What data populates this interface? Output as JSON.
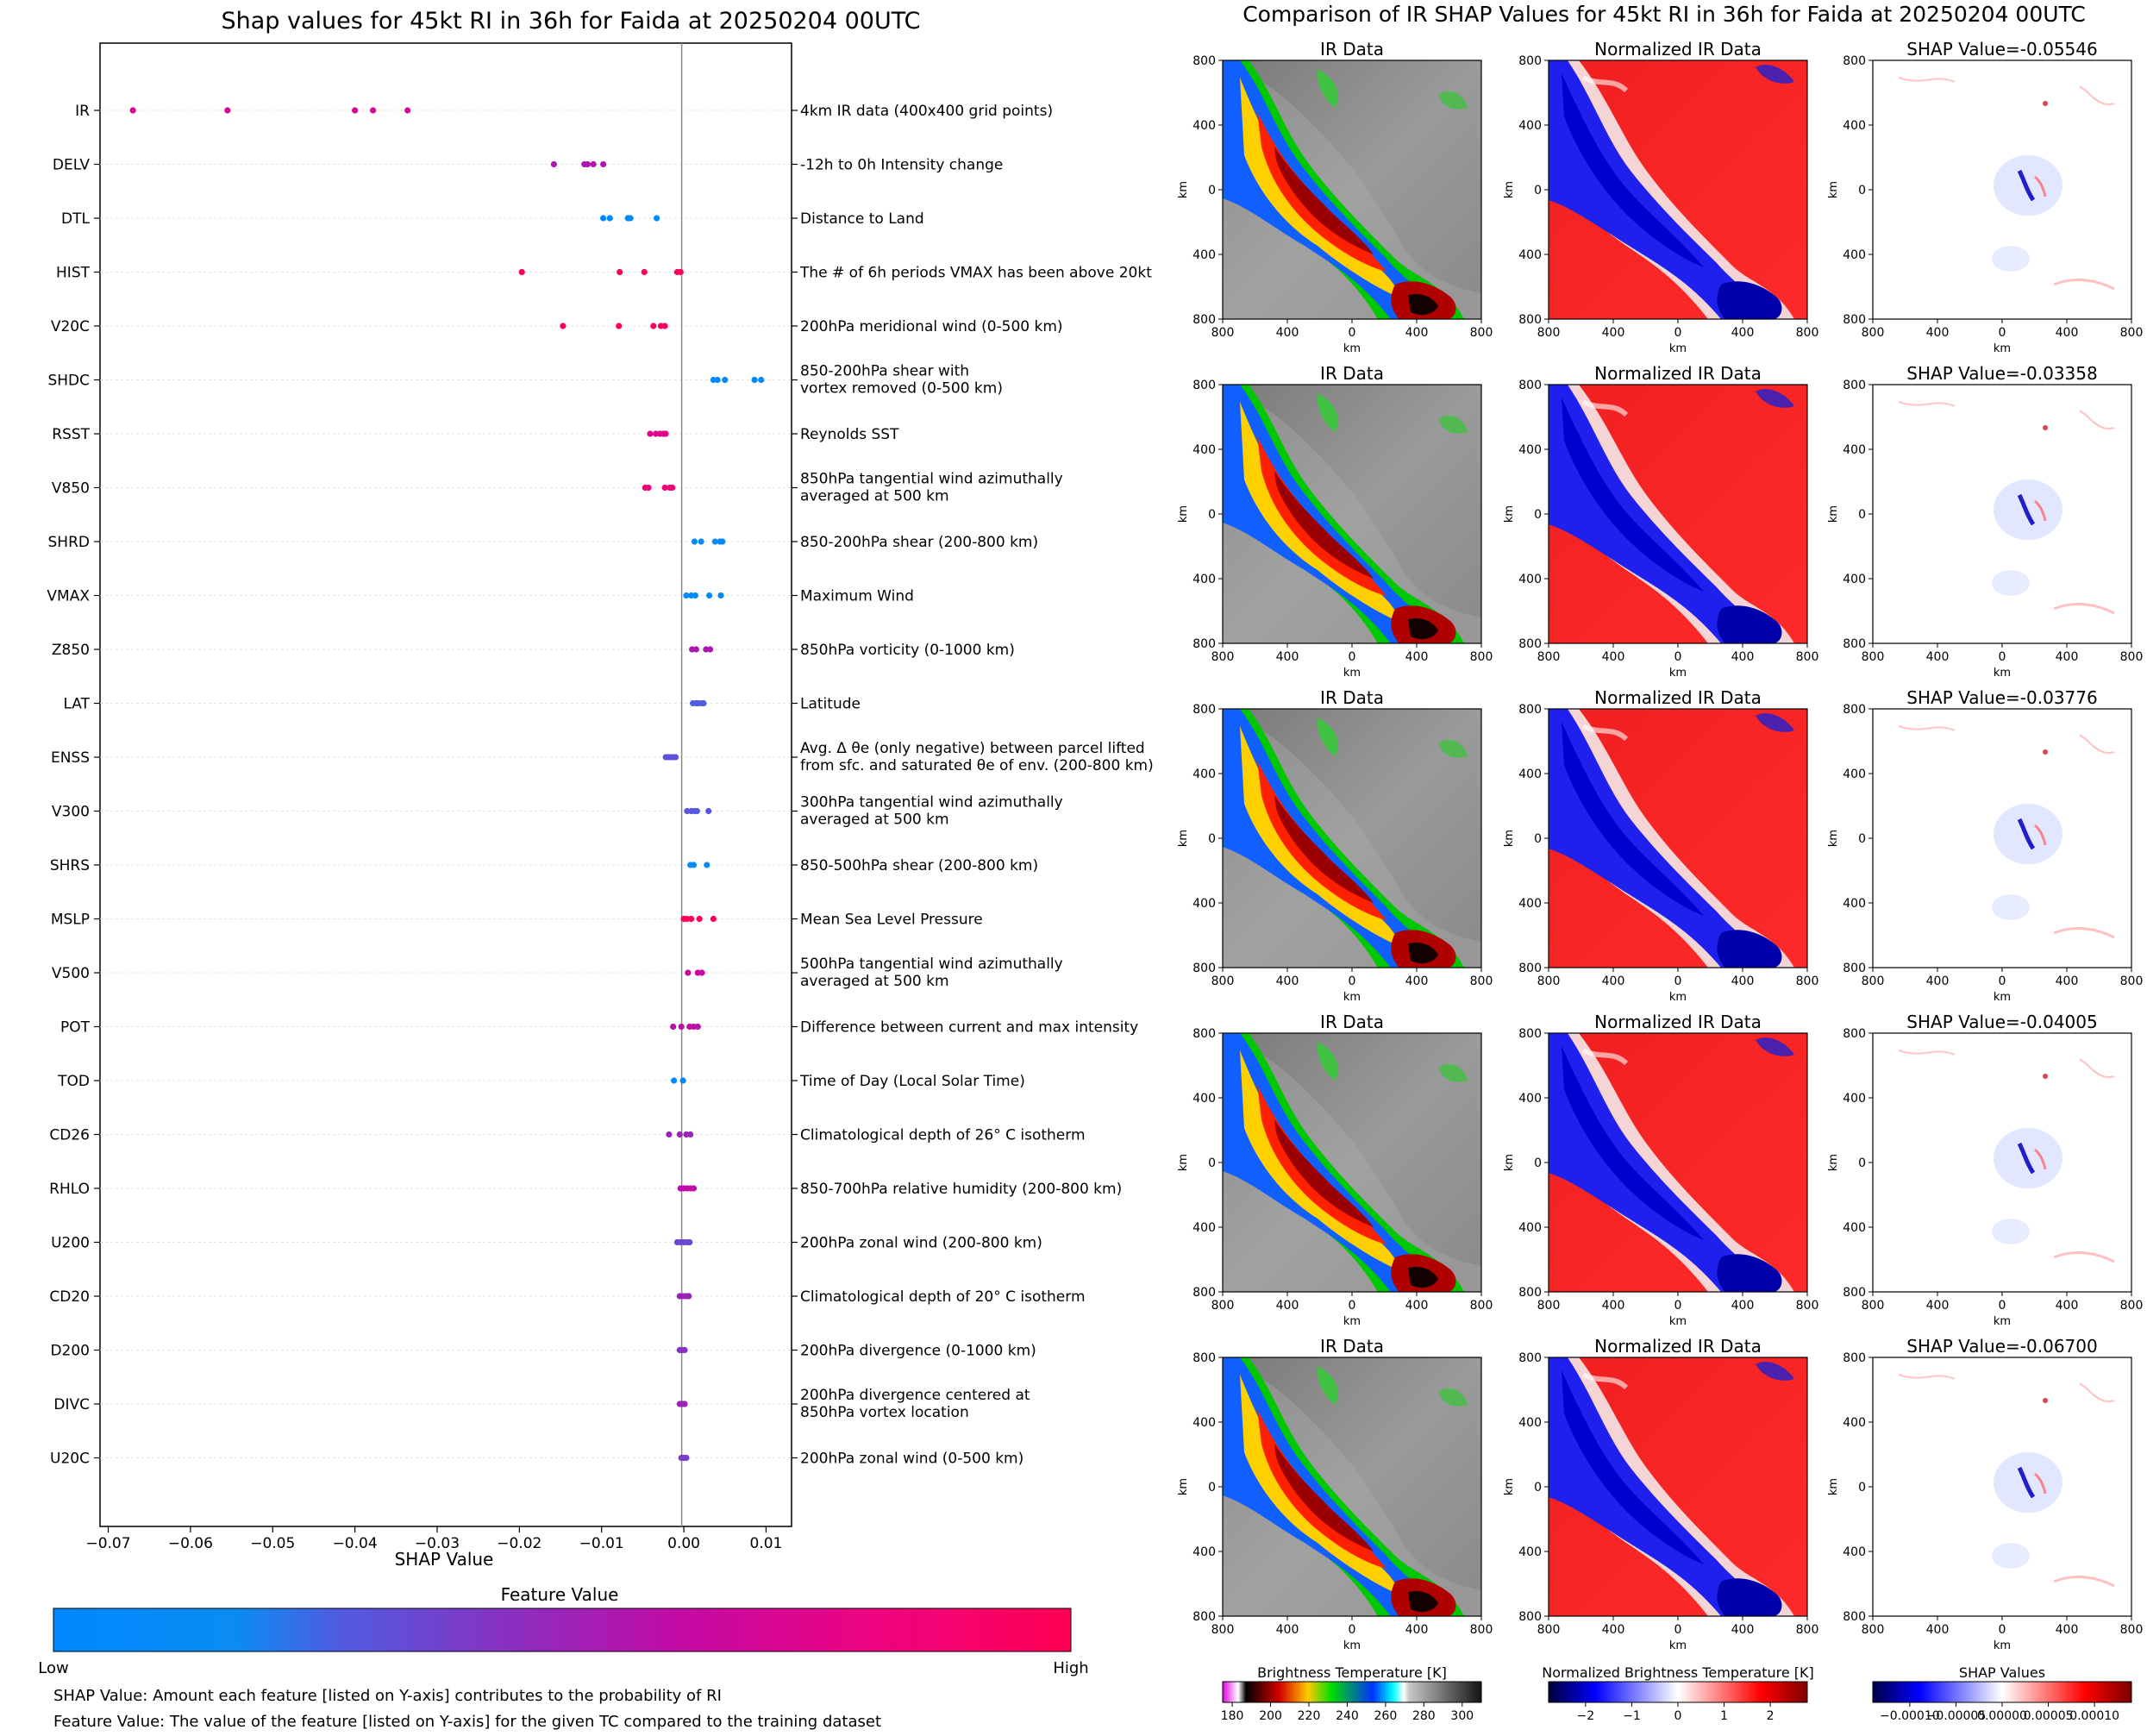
{
  "left_title": "Shap values for 45kt RI in 36h for Faida at 20250204 00UTC",
  "right_title": "Comparison of IR SHAP Values for 45kt RI in 36h for Faida at 20250204 00UTC",
  "colors": {
    "low": "#0089ff",
    "mid": "#8a2fc0",
    "high": "#ff0054",
    "grid": "#d9d9d9"
  },
  "colorbar": {
    "title": "Feature Value",
    "low_label": "Low",
    "high_label": "High"
  },
  "footnotes": [
    "SHAP Value: Amount each feature [listed on Y-axis] contributes to the probability of RI",
    "Feature Value: The value of the feature [listed on Y-axis] for the given TC compared to the training dataset"
  ],
  "panel_grid": {
    "col_titles": [
      "IR Data",
      "Normalized IR Data"
    ],
    "shap_titles": [
      "SHAP Value=-0.05546",
      "SHAP Value=-0.03358",
      "SHAP Value=-0.03776",
      "SHAP Value=-0.04005",
      "SHAP Value=-0.06700"
    ],
    "axis_unit": "km",
    "x_ticks": [
      "800",
      "400",
      "0",
      "400",
      "800"
    ],
    "y_ticks": [
      "800",
      "400",
      "0",
      "400",
      "800"
    ]
  },
  "bottom_colorbars": [
    {
      "title": "Brightness Temperature [K]",
      "ticks": [
        "180",
        "200",
        "220",
        "240",
        "260",
        "280",
        "300"
      ],
      "vmin": 175,
      "vmax": 310
    },
    {
      "title": "Normalized Brightness Temperature [K]",
      "ticks": [
        "−2",
        "−1",
        "0",
        "1",
        "2"
      ],
      "vmin": -2.8,
      "vmax": 2.8
    },
    {
      "title": "SHAP Values",
      "ticks": [
        "−0.00010",
        "−0.00005",
        "0.00000",
        "0.00005",
        "0.00010"
      ],
      "vmin": -0.00014,
      "vmax": 0.00014
    }
  ],
  "chart_data": {
    "type": "scatter",
    "title": "Shap values for 45kt RI in 36h for Faida at 20250204 00UTC",
    "xlabel": "SHAP Value",
    "ylabel": "",
    "xlim": [
      -0.071,
      0.0131
    ],
    "x_ticks": [
      -0.07,
      -0.06,
      -0.05,
      -0.04,
      -0.03,
      -0.02,
      -0.01,
      0.0,
      0.01
    ],
    "x_tick_labels": [
      "−0.07",
      "−0.06",
      "−0.05",
      "−0.04",
      "−0.03",
      "−0.02",
      "−0.01",
      "0.00",
      "0.01"
    ],
    "color_scale": "feature value (low → high)",
    "features": [
      {
        "name": "IR",
        "description": [
          "4km IR data (400x400 grid points)"
        ],
        "values": [
          -0.067,
          -0.0555,
          -0.04,
          -0.0378,
          -0.0336
        ],
        "fv": 0.7
      },
      {
        "name": "DELV",
        "description": [
          "-12h to 0h Intensity change"
        ],
        "values": [
          -0.0158,
          -0.0121,
          -0.0117,
          -0.011,
          -0.0098
        ],
        "fv": 0.55
      },
      {
        "name": "DTL",
        "description": [
          "Distance to Land"
        ],
        "values": [
          -0.0098,
          -0.009,
          -0.0068,
          -0.0065,
          -0.0033
        ],
        "fv": 0.0
      },
      {
        "name": "HIST",
        "description": [
          "The # of 6h periods VMAX has been above 20kt"
        ],
        "values": [
          -0.0197,
          -0.0078,
          -0.0048,
          -0.0008,
          -0.0004
        ],
        "fv": 1.0
      },
      {
        "name": "V20C",
        "description": [
          "200hPa meridional wind (0-500 km)"
        ],
        "values": [
          -0.0147,
          -0.0079,
          -0.0037,
          -0.0028,
          -0.0023
        ],
        "fv": 0.95
      },
      {
        "name": "SHDC",
        "description": [
          "850-200hPa shear with",
          "vortex removed (0-500 km)"
        ],
        "values": [
          0.0036,
          0.0041,
          0.005,
          0.0086,
          0.0094
        ],
        "fv": 0.0
      },
      {
        "name": "RSST",
        "description": [
          "Reynolds SST"
        ],
        "values": [
          -0.0041,
          -0.0034,
          -0.0029,
          -0.0025,
          -0.0022
        ],
        "fv": 0.75
      },
      {
        "name": "V850",
        "description": [
          "850hPa tangential wind azimuthally",
          "averaged at 500 km"
        ],
        "values": [
          -0.0047,
          -0.0043,
          -0.0023,
          -0.0017,
          -0.0014
        ],
        "fv": 0.85
      },
      {
        "name": "SHRD",
        "description": [
          "850-200hPa shear (200-800 km)"
        ],
        "values": [
          0.0013,
          0.0021,
          0.0038,
          0.0044,
          0.0047
        ],
        "fv": 0.1
      },
      {
        "name": "VMAX",
        "description": [
          "Maximum Wind"
        ],
        "values": [
          0.0003,
          0.0009,
          0.0014,
          0.0031,
          0.0045
        ],
        "fv": 0.05
      },
      {
        "name": "Z850",
        "description": [
          "850hPa vorticity (0-1000 km)"
        ],
        "values": [
          0.001,
          0.0015,
          0.0027,
          0.0032
        ],
        "fv": 0.55
      },
      {
        "name": "LAT",
        "description": [
          "Latitude"
        ],
        "values": [
          0.0011,
          0.0015,
          0.0018,
          0.0022,
          0.0024
        ],
        "fv": 0.28
      },
      {
        "name": "ENSS",
        "description": [
          "Avg. Δ θe (only negative) between parcel lifted",
          "from sfc. and saturated θe of env. (200-800 km)"
        ],
        "values": [
          -0.0022,
          -0.0019,
          -0.0016,
          -0.0013,
          -0.001
        ],
        "fv": 0.32
      },
      {
        "name": "V300",
        "description": [
          "300hPa tangential wind azimuthally",
          "averaged at 500 km"
        ],
        "values": [
          0.0004,
          0.0009,
          0.0013,
          0.0016,
          0.003
        ],
        "fv": 0.3
      },
      {
        "name": "SHRS",
        "description": [
          "850-500hPa shear (200-800 km)"
        ],
        "values": [
          0.0008,
          0.0012,
          0.0028
        ],
        "fv": 0.15
      },
      {
        "name": "MSLP",
        "description": [
          "Mean Sea Level Pressure"
        ],
        "values": [
          0.0,
          0.0004,
          0.0009,
          0.0019,
          0.0036
        ],
        "fv": 1.0
      },
      {
        "name": "V500",
        "description": [
          "500hPa tangential wind azimuthally",
          "averaged at 500 km"
        ],
        "values": [
          0.0005,
          0.0017,
          0.0022
        ],
        "fv": 0.65
      },
      {
        "name": "POT",
        "description": [
          "Difference between current and max intensity"
        ],
        "values": [
          -0.0013,
          -0.0003,
          0.0007,
          0.0012,
          0.0017
        ],
        "fv": 0.6
      },
      {
        "name": "TOD",
        "description": [
          "Time of Day (Local Solar Time)"
        ],
        "values": [
          -0.0012,
          -0.0001
        ],
        "fv": 0.0
      },
      {
        "name": "CD26",
        "description": [
          "Climatological depth of 26° C isotherm"
        ],
        "values": [
          -0.0018,
          -0.0005,
          0.0003,
          0.0008
        ],
        "fv": 0.5
      },
      {
        "name": "RHLO",
        "description": [
          "850-700hPa relative humidity (200-800 km)"
        ],
        "values": [
          -0.0004,
          0.0,
          0.0004,
          0.0008,
          0.0012
        ],
        "fv": 0.6
      },
      {
        "name": "U200",
        "description": [
          "200hPa zonal wind (200-800 km)"
        ],
        "values": [
          -0.0008,
          -0.0004,
          0.0,
          0.0004,
          0.0007
        ],
        "fv": 0.35
      },
      {
        "name": "CD20",
        "description": [
          "Climatological depth of 20° C isotherm"
        ],
        "values": [
          -0.0005,
          -0.0001,
          0.0003,
          0.0006
        ],
        "fv": 0.5
      },
      {
        "name": "D200",
        "description": [
          "200hPa divergence (0-1000 km)"
        ],
        "values": [
          -0.0005,
          -0.0002,
          0.0001
        ],
        "fv": 0.45
      },
      {
        "name": "DIVC",
        "description": [
          "200hPa divergence centered at",
          "850hPa vortex location"
        ],
        "values": [
          -0.0005,
          -0.0002,
          0.0001
        ],
        "fv": 0.5
      },
      {
        "name": "U20C",
        "description": [
          "200hPa zonal wind (0-500 km)"
        ],
        "values": [
          -0.0003,
          0.0,
          0.0003
        ],
        "fv": 0.4
      }
    ]
  }
}
